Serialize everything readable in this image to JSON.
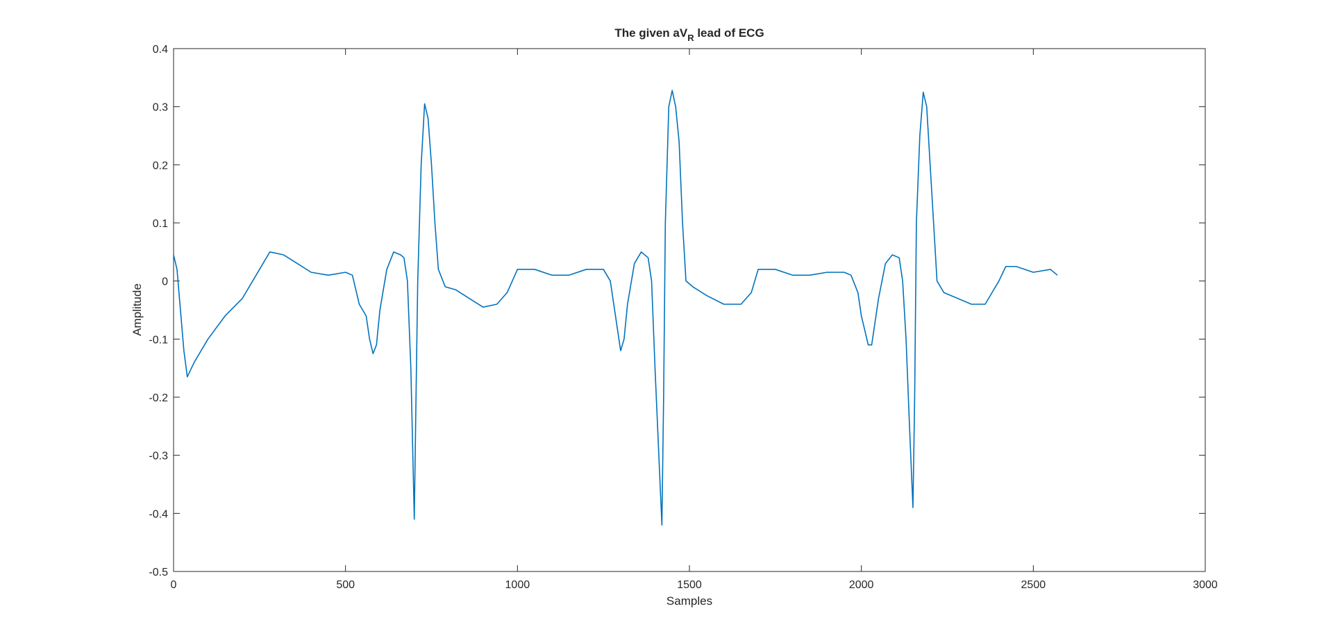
{
  "chart_data": {
    "type": "line",
    "title_parts": [
      "The given aV",
      "R",
      " lead of ECG"
    ],
    "x_label": "Samples",
    "y_label": "Amplitude",
    "xlim": [
      0,
      3000
    ],
    "xticks": [
      0,
      500,
      1000,
      1500,
      2000,
      2500,
      3000
    ],
    "ylim": [
      -0.5,
      0.4
    ],
    "yticks": [
      -0.5,
      -0.4,
      -0.3,
      -0.2,
      -0.1,
      0,
      0.1,
      0.2,
      0.3,
      0.4
    ],
    "grid": false,
    "series": [
      {
        "name": "aVR",
        "color": "#0072bd",
        "x": [
          0,
          10,
          20,
          30,
          40,
          60,
          100,
          150,
          200,
          250,
          280,
          320,
          360,
          400,
          450,
          500,
          520,
          540,
          560,
          570,
          580,
          590,
          600,
          620,
          640,
          660,
          670,
          680,
          690,
          700,
          705,
          710,
          715,
          720,
          730,
          740,
          750,
          760,
          770,
          790,
          820,
          860,
          900,
          940,
          970,
          1000,
          1050,
          1100,
          1150,
          1200,
          1250,
          1270,
          1280,
          1290,
          1300,
          1310,
          1320,
          1340,
          1360,
          1380,
          1390,
          1400,
          1420,
          1425,
          1430,
          1440,
          1450,
          1460,
          1470,
          1480,
          1490,
          1510,
          1550,
          1600,
          1650,
          1680,
          1700,
          1750,
          1800,
          1850,
          1900,
          1950,
          1970,
          1990,
          2000,
          2020,
          2030,
          2050,
          2070,
          2090,
          2110,
          2120,
          2130,
          2140,
          2150,
          2155,
          2160,
          2170,
          2180,
          2190,
          2200,
          2210,
          2220,
          2240,
          2280,
          2320,
          2360,
          2380,
          2400,
          2420,
          2450,
          2500,
          2550,
          2570
        ],
        "values": [
          0.045,
          0.02,
          -0.05,
          -0.12,
          -0.165,
          -0.14,
          -0.1,
          -0.06,
          -0.03,
          0.02,
          0.05,
          0.045,
          0.03,
          0.015,
          0.01,
          0.015,
          0.01,
          -0.04,
          -0.06,
          -0.1,
          -0.125,
          -0.11,
          -0.05,
          0.02,
          0.05,
          0.045,
          0.04,
          0,
          -0.15,
          -0.41,
          -0.2,
          0,
          0.1,
          0.2,
          0.305,
          0.28,
          0.2,
          0.1,
          0.02,
          -0.01,
          -0.015,
          -0.03,
          -0.045,
          -0.04,
          -0.02,
          0.02,
          0.02,
          0.01,
          0.01,
          0.02,
          0.02,
          0,
          -0.04,
          -0.08,
          -0.12,
          -0.1,
          -0.04,
          0.03,
          0.05,
          0.04,
          0,
          -0.15,
          -0.42,
          -0.2,
          0.1,
          0.3,
          0.328,
          0.3,
          0.24,
          0.1,
          0,
          -0.01,
          -0.025,
          -0.04,
          -0.04,
          -0.02,
          0.02,
          0.02,
          0.01,
          0.01,
          0.015,
          0.015,
          0.01,
          -0.02,
          -0.06,
          -0.11,
          -0.11,
          -0.03,
          0.03,
          0.045,
          0.04,
          0,
          -0.1,
          -0.25,
          -0.39,
          -0.2,
          0.1,
          0.25,
          0.325,
          0.3,
          0.2,
          0.1,
          0,
          -0.02,
          -0.03,
          -0.04,
          -0.04,
          -0.02,
          0,
          0.025,
          0.025,
          0.015,
          0.02,
          0.01
        ]
      }
    ]
  }
}
